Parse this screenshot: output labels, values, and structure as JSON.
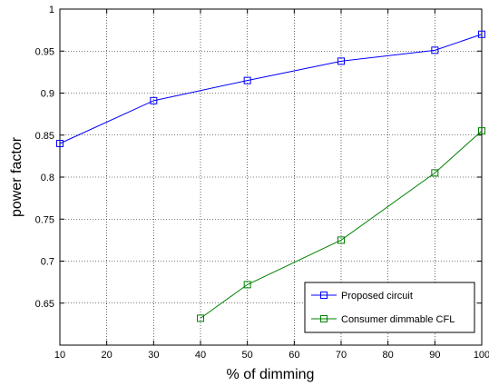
{
  "chart_data": {
    "type": "line",
    "xlabel": "% of dimming",
    "ylabel": "power factor",
    "xlim": [
      10,
      100
    ],
    "ylim": [
      0.6,
      1.0
    ],
    "xticks": [
      10,
      20,
      30,
      40,
      50,
      60,
      70,
      80,
      90,
      100
    ],
    "yticks": [
      0.65,
      0.7,
      0.75,
      0.8,
      0.85,
      0.9,
      0.95,
      1
    ],
    "ytick_labels": [
      "0.65",
      "0.7",
      "0.75",
      "0.8",
      "0.85",
      "0.9",
      "0.95",
      "1"
    ],
    "grid": true,
    "legend_position": "bottom-right",
    "series": [
      {
        "name": "Proposed circuit",
        "color": "#0000ff",
        "marker": "square",
        "x": [
          10,
          30,
          50,
          70,
          90,
          100
        ],
        "y": [
          0.84,
          0.891,
          0.915,
          0.938,
          0.951,
          0.97
        ]
      },
      {
        "name": "Consumer dimmable CFL",
        "color": "#008000",
        "marker": "square",
        "x": [
          40,
          50,
          70,
          90,
          100
        ],
        "y": [
          0.632,
          0.672,
          0.725,
          0.805,
          0.855
        ]
      }
    ]
  }
}
